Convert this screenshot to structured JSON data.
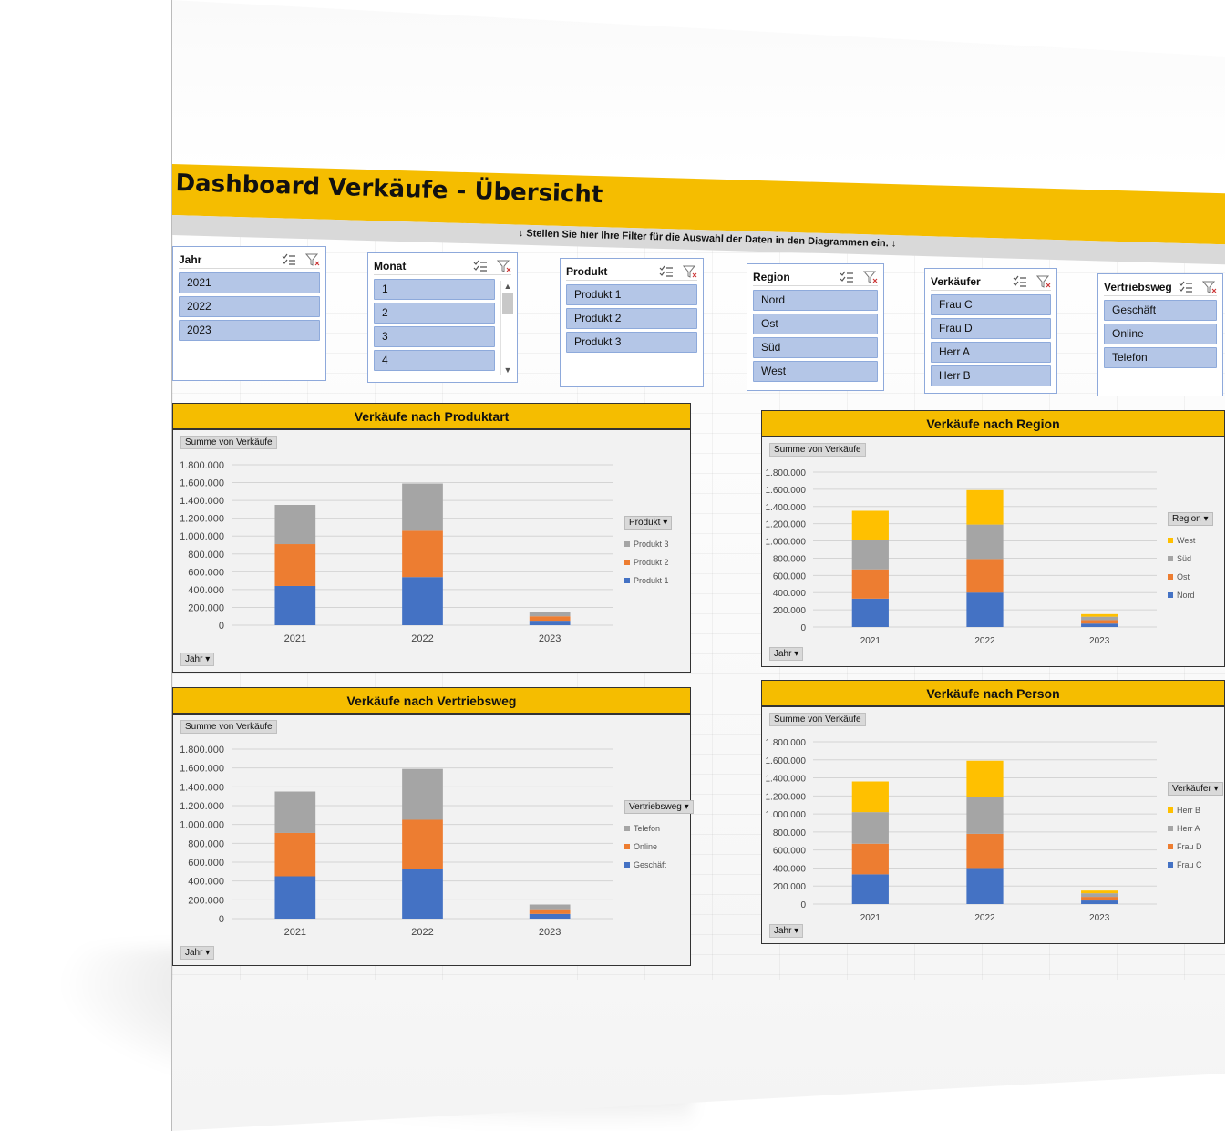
{
  "header": {
    "title": "Dashboard Verkäufe - Übersicht",
    "filter_hint": "↓  Stellen Sie hier Ihre Filter für die Auswahl der Daten in den Diagrammen ein.  ↓"
  },
  "colors": {
    "accent": "#f5bd00",
    "slicer_item": "#b4c6e7",
    "series_blue": "#4472c4",
    "series_orange": "#ed7d31",
    "series_gray": "#a5a5a5",
    "series_yellow": "#ffc000"
  },
  "slicers": [
    {
      "title": "Jahr",
      "items": [
        "2021",
        "2022",
        "2023"
      ],
      "icons": [
        "multi-select-icon",
        "clear-filter-icon"
      ]
    },
    {
      "title": "Monat",
      "items": [
        "1",
        "2",
        "3",
        "4"
      ],
      "icons": [
        "multi-select-icon",
        "clear-filter-icon"
      ]
    },
    {
      "title": "Produkt",
      "items": [
        "Produkt 1",
        "Produkt 2",
        "Produkt 3"
      ],
      "icons": [
        "multi-select-icon",
        "clear-filter-icon"
      ]
    },
    {
      "title": "Region",
      "items": [
        "Nord",
        "Ost",
        "Süd",
        "West"
      ],
      "icons": [
        "multi-select-icon",
        "clear-filter-icon"
      ]
    },
    {
      "title": "Verkäufer",
      "items": [
        "Frau C",
        "Frau D",
        "Herr A",
        "Herr B"
      ],
      "icons": [
        "multi-select-icon",
        "clear-filter-icon"
      ]
    },
    {
      "title": "Vertriebsweg",
      "items": [
        "Geschäft",
        "Online",
        "Telefon"
      ],
      "icons": [
        "multi-select-icon",
        "clear-filter-icon"
      ]
    }
  ],
  "panels": [
    {
      "title": "Verkäufe nach Produktart",
      "value_button": "Summe von Verkäufe",
      "axis_button": "Jahr",
      "legend_button": "Produkt"
    },
    {
      "title": "Verkäufe nach Region",
      "value_button": "Summe von Verkäufe",
      "axis_button": "Jahr",
      "legend_button": "Region"
    },
    {
      "title": "Verkäufe nach Vertriebsweg",
      "value_button": "Summe von Verkäufe",
      "axis_button": "Jahr",
      "legend_button": "Vertriebsweg"
    },
    {
      "title": "Verkäufe nach Person",
      "value_button": "Summe von Verkäufe",
      "axis_button": "Jahr",
      "legend_button": "Verkäufer"
    }
  ],
  "chart_data": [
    {
      "type": "bar",
      "stacked": true,
      "categories": [
        "2021",
        "2022",
        "2023"
      ],
      "ylim": [
        0,
        1800000
      ],
      "yticks": [
        "0",
        "200.000",
        "400.000",
        "600.000",
        "800.000",
        "1.000.000",
        "1.200.000",
        "1.400.000",
        "1.600.000",
        "1.800.000"
      ],
      "legend_position": "right",
      "grid": true,
      "series": [
        {
          "name": "Produkt 1",
          "color": "#4472c4",
          "values": [
            440000,
            540000,
            50000
          ]
        },
        {
          "name": "Produkt 2",
          "color": "#ed7d31",
          "values": [
            470000,
            520000,
            50000
          ]
        },
        {
          "name": "Produkt 3",
          "color": "#a5a5a5",
          "values": [
            440000,
            530000,
            50000
          ]
        }
      ]
    },
    {
      "type": "bar",
      "stacked": true,
      "categories": [
        "2021",
        "2022",
        "2023"
      ],
      "ylim": [
        0,
        1800000
      ],
      "yticks": [
        "0",
        "200.000",
        "400.000",
        "600.000",
        "800.000",
        "1.000.000",
        "1.200.000",
        "1.400.000",
        "1.600.000",
        "1.800.000"
      ],
      "legend_position": "right",
      "grid": true,
      "series": [
        {
          "name": "Nord",
          "color": "#4472c4",
          "values": [
            330000,
            400000,
            40000
          ]
        },
        {
          "name": "Ost",
          "color": "#ed7d31",
          "values": [
            340000,
            390000,
            40000
          ]
        },
        {
          "name": "Süd",
          "color": "#a5a5a5",
          "values": [
            340000,
            400000,
            40000
          ]
        },
        {
          "name": "West",
          "color": "#ffc000",
          "values": [
            340000,
            400000,
            30000
          ]
        }
      ]
    },
    {
      "type": "bar",
      "stacked": true,
      "categories": [
        "2021",
        "2022",
        "2023"
      ],
      "ylim": [
        0,
        1800000
      ],
      "yticks": [
        "0",
        "200.000",
        "400.000",
        "600.000",
        "800.000",
        "1.000.000",
        "1.200.000",
        "1.400.000",
        "1.600.000",
        "1.800.000"
      ],
      "legend_position": "right",
      "grid": true,
      "series": [
        {
          "name": "Geschäft",
          "color": "#4472c4",
          "values": [
            450000,
            530000,
            50000
          ]
        },
        {
          "name": "Online",
          "color": "#ed7d31",
          "values": [
            460000,
            520000,
            50000
          ]
        },
        {
          "name": "Telefon",
          "color": "#a5a5a5",
          "values": [
            440000,
            540000,
            50000
          ]
        }
      ]
    },
    {
      "type": "bar",
      "stacked": true,
      "categories": [
        "2021",
        "2022",
        "2023"
      ],
      "ylim": [
        0,
        1800000
      ],
      "yticks": [
        "0",
        "200.000",
        "400.000",
        "600.000",
        "800.000",
        "1.000.000",
        "1.200.000",
        "1.400.000",
        "1.600.000",
        "1.800.000"
      ],
      "legend_position": "right",
      "grid": true,
      "series": [
        {
          "name": "Frau C",
          "color": "#4472c4",
          "values": [
            330000,
            400000,
            40000
          ]
        },
        {
          "name": "Frau D",
          "color": "#ed7d31",
          "values": [
            340000,
            380000,
            40000
          ]
        },
        {
          "name": "Herr A",
          "color": "#a5a5a5",
          "values": [
            350000,
            410000,
            40000
          ]
        },
        {
          "name": "Herr B",
          "color": "#ffc000",
          "values": [
            340000,
            400000,
            30000
          ]
        }
      ]
    }
  ]
}
